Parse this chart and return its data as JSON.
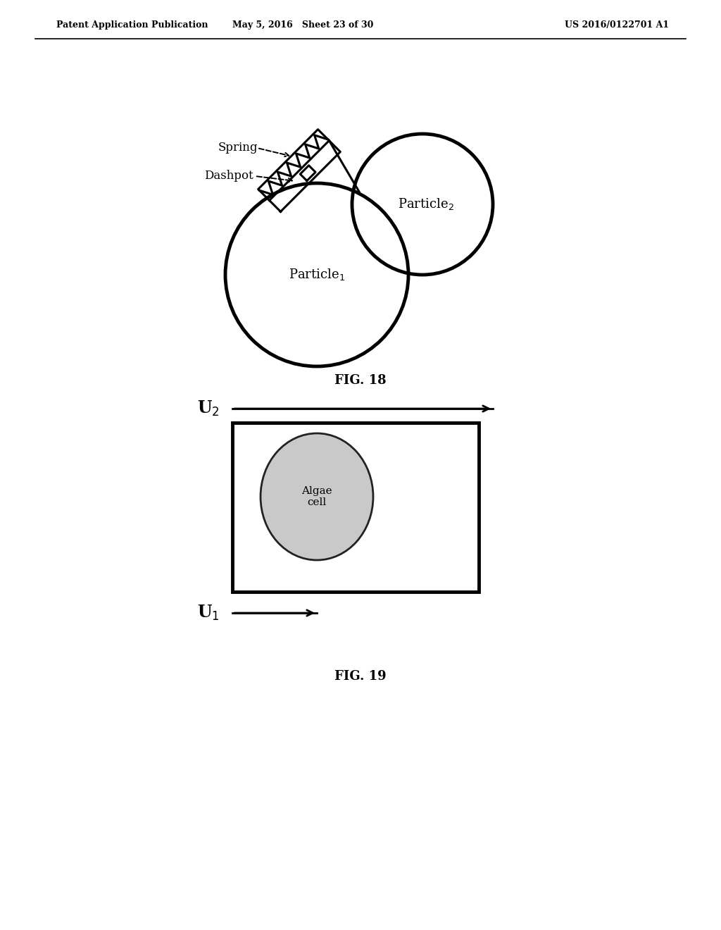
{
  "bg_color": "#ffffff",
  "header_left": "Patent Application Publication",
  "header_mid": "May 5, 2016   Sheet 23 of 30",
  "header_right": "US 2016/0122701 A1",
  "fig18_caption": "FIG. 18",
  "fig19_caption": "FIG. 19"
}
